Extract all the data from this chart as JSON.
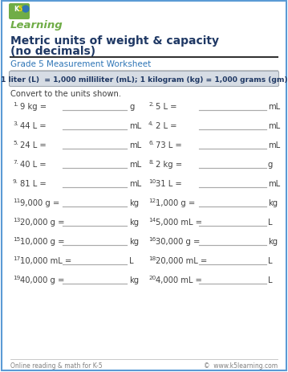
{
  "title_line1": "Metric units of weight & capacity",
  "title_line2": "(no decimals)",
  "subtitle": "Grade 5 Measurement Worksheet",
  "formula_box": "1 liter (L)  = 1,000 milliliter (mL); 1 kilogram (kg) = 1,000 grams (gm)",
  "instruction": "Convert to the units shown.",
  "problems": [
    {
      "num": "1.",
      "question": "9 kg =",
      "unit": "g"
    },
    {
      "num": "2.",
      "question": "5 L =",
      "unit": "mL"
    },
    {
      "num": "3.",
      "question": "44 L =",
      "unit": "mL"
    },
    {
      "num": "4.",
      "question": "2 L =",
      "unit": "mL"
    },
    {
      "num": "5.",
      "question": "24 L =",
      "unit": "mL"
    },
    {
      "num": "6.",
      "question": "73 L =",
      "unit": "mL"
    },
    {
      "num": "7.",
      "question": "40 L =",
      "unit": "mL"
    },
    {
      "num": "8.",
      "question": "2 kg =",
      "unit": "g"
    },
    {
      "num": "9.",
      "question": "81 L =",
      "unit": "mL"
    },
    {
      "num": "10.",
      "question": "31 L =",
      "unit": "mL"
    },
    {
      "num": "11.",
      "question": "9,000 g =",
      "unit": "kg"
    },
    {
      "num": "12.",
      "question": "1,000 g =",
      "unit": "kg"
    },
    {
      "num": "13.",
      "question": "20,000 g =",
      "unit": "kg"
    },
    {
      "num": "14.",
      "question": "5,000 mL =",
      "unit": "L"
    },
    {
      "num": "15.",
      "question": "10,000 g =",
      "unit": "kg"
    },
    {
      "num": "16.",
      "question": "30,000 g =",
      "unit": "kg"
    },
    {
      "num": "17.",
      "question": "10,000 mL =",
      "unit": "L"
    },
    {
      "num": "18.",
      "question": "20,000 mL =",
      "unit": "L"
    },
    {
      "num": "19.",
      "question": "40,000 g =",
      "unit": "kg"
    },
    {
      "num": "20.",
      "question": "4,000 mL =",
      "unit": "L"
    }
  ],
  "footer_left": "Online reading & math for K-5",
  "footer_right": "©  www.k5learning.com",
  "border_color": "#5b9bd5",
  "title_color": "#1f3864",
  "subtitle_color": "#2e75b6",
  "formula_bg": "#d6dce4",
  "formula_text_color": "#1f3864",
  "problem_color": "#404040",
  "footer_color": "#808080",
  "bg_color": "#ffffff",
  "line_color": "#aaaaaa",
  "logo_green": "#70ad47",
  "logo_blue": "#2e75b6"
}
